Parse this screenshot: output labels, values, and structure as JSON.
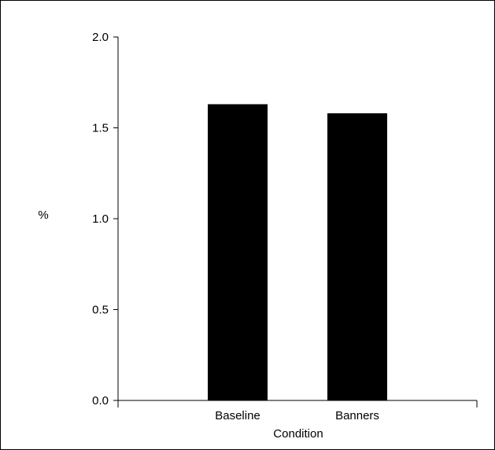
{
  "chart_data": {
    "type": "bar",
    "categories": [
      "Baseline",
      "Banners"
    ],
    "values": [
      1.63,
      1.58
    ],
    "xlabel": "Condition",
    "ylabel": "%",
    "ylim": [
      0,
      2.0
    ],
    "yticks": [
      "0.0",
      "0.5",
      "1.0",
      "1.5",
      "2.0"
    ],
    "bar_color": "#000000",
    "grid": false,
    "legend": false
  }
}
